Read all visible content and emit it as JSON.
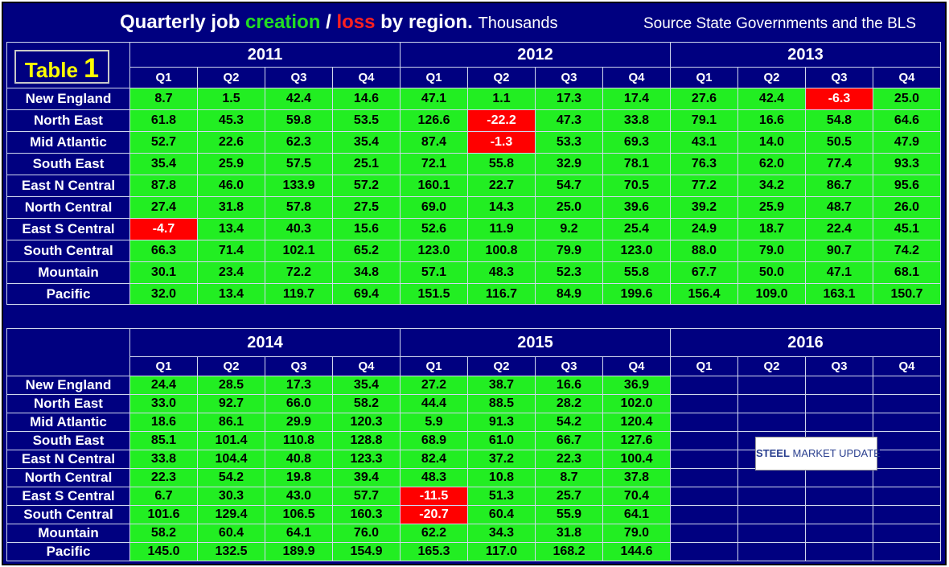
{
  "header": {
    "title_part1": "Quarterly job",
    "title_creation": "creation",
    "title_slash": "/",
    "title_loss": "loss",
    "title_part2": "by region.",
    "title_units": "Thousands",
    "source": "Source State Governments and the BLS"
  },
  "table_label": {
    "word": "Table",
    "number": "1"
  },
  "logo": {
    "steel": "STEEL",
    "rest": "MARKET UPDATE"
  },
  "colors": {
    "background": "#000080",
    "positive_cell": "#22ee22",
    "negative_cell": "#ff0000",
    "creation_text": "#22dd22",
    "loss_text": "#ff2020",
    "table_label_text": "#ffff00"
  },
  "quarters": [
    "Q1",
    "Q2",
    "Q3",
    "Q4"
  ],
  "chart_data": [
    {
      "type": "table",
      "years": [
        "2011",
        "2012",
        "2013"
      ],
      "regions": [
        "New England",
        "North East",
        "Mid Atlantic",
        "South East",
        "East N Central",
        "North Central",
        "East S Central",
        "South Central",
        "Mountain",
        "Pacific"
      ],
      "rows": [
        [
          "8.7",
          "1.5",
          "42.4",
          "14.6",
          "47.1",
          "1.1",
          "17.3",
          "17.4",
          "27.6",
          "42.4",
          "-6.3",
          "25.0"
        ],
        [
          "61.8",
          "45.3",
          "59.8",
          "53.5",
          "126.6",
          "-22.2",
          "47.3",
          "33.8",
          "79.1",
          "16.6",
          "54.8",
          "64.6"
        ],
        [
          "52.7",
          "22.6",
          "62.3",
          "35.4",
          "87.4",
          "-1.3",
          "53.3",
          "69.3",
          "43.1",
          "14.0",
          "50.5",
          "47.9"
        ],
        [
          "35.4",
          "25.9",
          "57.5",
          "25.1",
          "72.1",
          "55.8",
          "32.9",
          "78.1",
          "76.3",
          "62.0",
          "77.4",
          "93.3"
        ],
        [
          "87.8",
          "46.0",
          "133.9",
          "57.2",
          "160.1",
          "22.7",
          "54.7",
          "70.5",
          "77.2",
          "34.2",
          "86.7",
          "95.6"
        ],
        [
          "27.4",
          "31.8",
          "57.8",
          "27.5",
          "69.0",
          "14.3",
          "25.0",
          "39.6",
          "39.2",
          "25.9",
          "48.7",
          "26.0"
        ],
        [
          "-4.7",
          "13.4",
          "40.3",
          "15.6",
          "52.6",
          "11.9",
          "9.2",
          "25.4",
          "24.9",
          "18.7",
          "22.4",
          "45.1"
        ],
        [
          "66.3",
          "71.4",
          "102.1",
          "65.2",
          "123.0",
          "100.8",
          "79.9",
          "123.0",
          "88.0",
          "79.0",
          "90.7",
          "74.2"
        ],
        [
          "30.1",
          "23.4",
          "72.2",
          "34.8",
          "57.1",
          "48.3",
          "52.3",
          "55.8",
          "67.7",
          "50.0",
          "47.1",
          "68.1"
        ],
        [
          "32.0",
          "13.4",
          "119.7",
          "69.4",
          "151.5",
          "116.7",
          "84.9",
          "199.6",
          "156.4",
          "109.0",
          "163.1",
          "150.7"
        ]
      ]
    },
    {
      "type": "table",
      "years": [
        "2014",
        "2015",
        "2016"
      ],
      "regions": [
        "New England",
        "North East",
        "Mid Atlantic",
        "South East",
        "East N Central",
        "North Central",
        "East S Central",
        "South Central",
        "Mountain",
        "Pacific"
      ],
      "rows": [
        [
          "24.4",
          "28.5",
          "17.3",
          "35.4",
          "27.2",
          "38.7",
          "16.6",
          "36.9",
          "",
          "",
          "",
          ""
        ],
        [
          "33.0",
          "92.7",
          "66.0",
          "58.2",
          "44.4",
          "88.5",
          "28.2",
          "102.0",
          "",
          "",
          "",
          ""
        ],
        [
          "18.6",
          "86.1",
          "29.9",
          "120.3",
          "5.9",
          "91.3",
          "54.2",
          "120.4",
          "",
          "",
          "",
          ""
        ],
        [
          "85.1",
          "101.4",
          "110.8",
          "128.8",
          "68.9",
          "61.0",
          "66.7",
          "127.6",
          "",
          "",
          "",
          ""
        ],
        [
          "33.8",
          "104.4",
          "40.8",
          "123.3",
          "82.4",
          "37.2",
          "22.3",
          "100.4",
          "",
          "",
          "",
          ""
        ],
        [
          "22.3",
          "54.2",
          "19.8",
          "39.4",
          "48.3",
          "10.8",
          "8.7",
          "37.8",
          "",
          "",
          "",
          ""
        ],
        [
          "6.7",
          "30.3",
          "43.0",
          "57.7",
          "-11.5",
          "51.3",
          "25.7",
          "70.4",
          "",
          "",
          "",
          ""
        ],
        [
          "101.6",
          "129.4",
          "106.5",
          "160.3",
          "-20.7",
          "60.4",
          "55.9",
          "64.1",
          "",
          "",
          "",
          ""
        ],
        [
          "58.2",
          "60.4",
          "64.1",
          "76.0",
          "62.2",
          "34.3",
          "31.8",
          "79.0",
          "",
          "",
          "",
          ""
        ],
        [
          "145.0",
          "132.5",
          "189.9",
          "154.9",
          "165.3",
          "117.0",
          "168.2",
          "144.6",
          "",
          "",
          "",
          ""
        ]
      ]
    }
  ]
}
